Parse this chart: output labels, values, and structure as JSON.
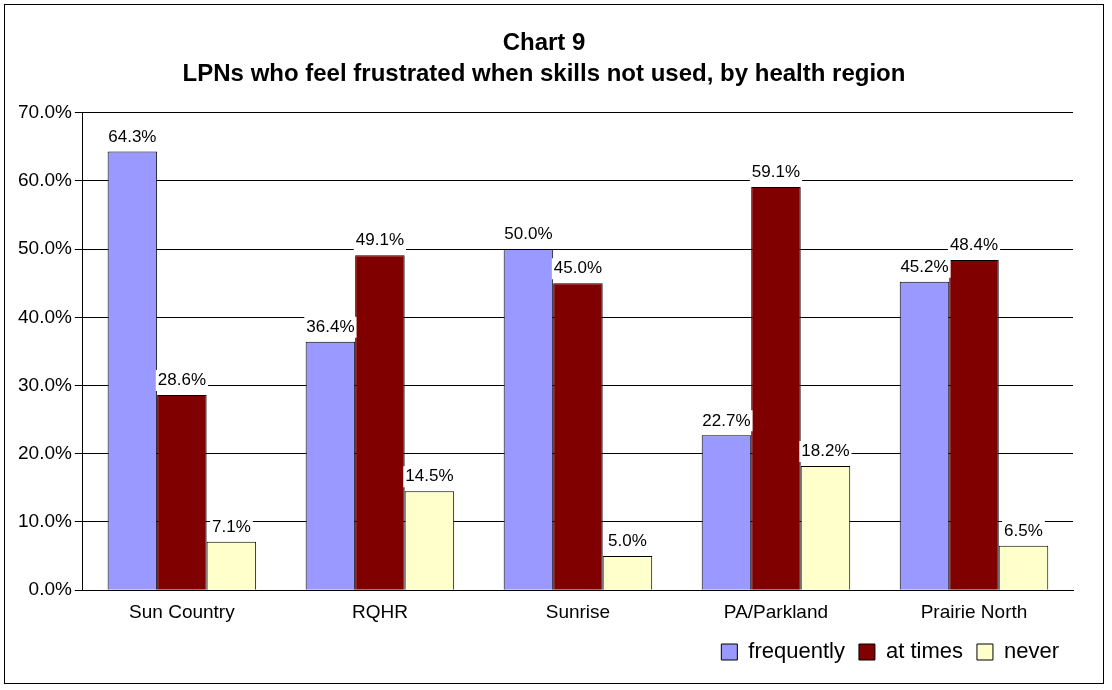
{
  "chart_data": {
    "type": "bar",
    "title": "Chart 9",
    "subtitle": "LPNs who feel frustrated when skills not used, by health region",
    "categories": [
      "Sun Country",
      "RQHR",
      "Sunrise",
      "PA/Parkland",
      "Prairie North"
    ],
    "series": [
      {
        "name": "frequently",
        "color": "#9999ff",
        "values": [
          64.3,
          36.4,
          50.0,
          22.7,
          45.2
        ],
        "value_labels": [
          "64.3%",
          "36.4%",
          "50.0%",
          "22.7%",
          "45.2%"
        ]
      },
      {
        "name": "at times",
        "color": "#800000",
        "values": [
          28.6,
          49.1,
          45.0,
          59.1,
          48.4
        ],
        "value_labels": [
          "28.6%",
          "49.1%",
          "45.0%",
          "59.1%",
          "48.4%"
        ]
      },
      {
        "name": "never",
        "color": "#ffffcc",
        "values": [
          7.1,
          14.5,
          5.0,
          18.2,
          6.5
        ],
        "value_labels": [
          "7.1%",
          "14.5%",
          "5.0%",
          "18.2%",
          "6.5%"
        ]
      }
    ],
    "ylim": [
      0,
      70
    ],
    "yticks": [
      {
        "value": 0,
        "label": "0.0%"
      },
      {
        "value": 10,
        "label": "10.0%"
      },
      {
        "value": 20,
        "label": "20.0%"
      },
      {
        "value": 30,
        "label": "30.0%"
      },
      {
        "value": 40,
        "label": "40.0%"
      },
      {
        "value": 50,
        "label": "50.0%"
      },
      {
        "value": 60,
        "label": "60.0%"
      },
      {
        "value": 70,
        "label": "70.0%"
      }
    ],
    "grid": "y",
    "legend": "bottom right"
  }
}
